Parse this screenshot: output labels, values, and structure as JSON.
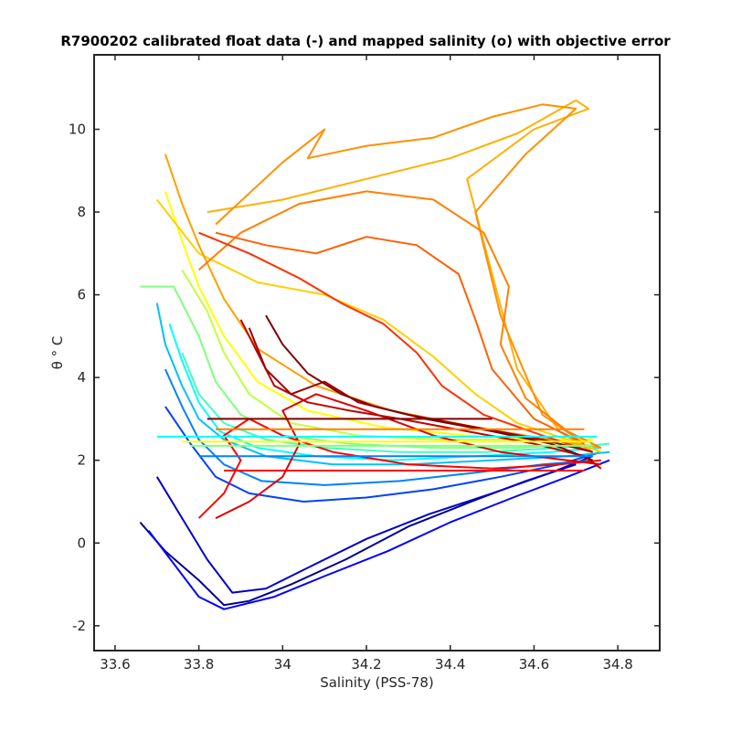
{
  "chart_data": {
    "type": "line",
    "title": "R7900202 calibrated float data (-) and mapped salinity (o) with objective error",
    "xlabel": "Salinity (PSS-78)",
    "ylabel": "θ ° C",
    "xlim": [
      33.55,
      34.9
    ],
    "ylim": [
      -2.6,
      11.8
    ],
    "xticks": [
      33.6,
      33.8,
      34,
      34.2,
      34.4,
      34.6,
      34.8
    ],
    "xtick_labels": [
      "33.6",
      "33.8",
      "34",
      "34.2",
      "34.4",
      "34.6",
      "34.8"
    ],
    "yticks": [
      -2,
      0,
      2,
      4,
      6,
      8,
      10
    ],
    "ytick_labels": [
      "-2",
      "0",
      "2",
      "4",
      "6",
      "8",
      "10"
    ],
    "grid": false,
    "colormap": "jet",
    "colormap_stops": [
      "#00008f",
      "#0000ff",
      "#0080ff",
      "#00ffff",
      "#80ff80",
      "#ffff00",
      "#ff8000",
      "#ff0000",
      "#800000"
    ],
    "series": [
      {
        "color": "#00008f",
        "values": [
          [
            33.66,
            0.5
          ],
          [
            33.72,
            -0.2
          ],
          [
            33.8,
            -0.9
          ],
          [
            33.86,
            -1.5
          ],
          [
            33.92,
            -1.4
          ],
          [
            34.02,
            -1.0
          ],
          [
            34.15,
            -0.4
          ],
          [
            34.3,
            0.4
          ],
          [
            34.45,
            1.0
          ],
          [
            34.58,
            1.5
          ],
          [
            34.7,
            1.9
          ]
        ]
      },
      {
        "color": "#0000c8",
        "values": [
          [
            33.7,
            1.6
          ],
          [
            33.76,
            0.6
          ],
          [
            33.82,
            -0.4
          ],
          [
            33.88,
            -1.2
          ],
          [
            33.96,
            -1.1
          ],
          [
            34.06,
            -0.6
          ],
          [
            34.2,
            0.1
          ],
          [
            34.35,
            0.7
          ],
          [
            34.5,
            1.2
          ],
          [
            34.64,
            1.7
          ],
          [
            34.74,
            2.1
          ]
        ]
      },
      {
        "color": "#0000ff",
        "values": [
          [
            33.68,
            0.3
          ],
          [
            33.74,
            -0.5
          ],
          [
            33.8,
            -1.3
          ],
          [
            33.86,
            -1.6
          ],
          [
            33.98,
            -1.3
          ],
          [
            34.1,
            -0.8
          ],
          [
            34.25,
            -0.2
          ],
          [
            34.4,
            0.5
          ],
          [
            34.55,
            1.1
          ],
          [
            34.68,
            1.6
          ],
          [
            34.78,
            2.0
          ]
        ]
      },
      {
        "color": "#0040ff",
        "values": [
          [
            33.72,
            3.3
          ],
          [
            33.78,
            2.4
          ],
          [
            33.84,
            1.6
          ],
          [
            33.92,
            1.2
          ],
          [
            34.05,
            1.0
          ],
          [
            34.2,
            1.1
          ],
          [
            34.36,
            1.3
          ],
          [
            34.52,
            1.6
          ],
          [
            34.66,
            1.9
          ],
          [
            34.76,
            2.2
          ]
        ]
      },
      {
        "color": "#0080ff",
        "values": [
          [
            33.72,
            4.2
          ],
          [
            33.76,
            3.3
          ],
          [
            33.8,
            2.5
          ],
          [
            33.86,
            1.9
          ],
          [
            33.95,
            1.5
          ],
          [
            34.1,
            1.4
          ],
          [
            34.28,
            1.5
          ],
          [
            34.46,
            1.7
          ],
          [
            34.62,
            1.9
          ],
          [
            34.74,
            2.0
          ]
        ]
      },
      {
        "color": "#00c0ff",
        "values": [
          [
            33.7,
            5.8
          ],
          [
            33.72,
            4.8
          ],
          [
            33.76,
            3.8
          ],
          [
            33.8,
            3.0
          ],
          [
            33.86,
            2.5
          ],
          [
            33.96,
            2.1
          ],
          [
            34.12,
            1.9
          ],
          [
            34.3,
            1.9
          ],
          [
            34.5,
            2.0
          ],
          [
            34.68,
            2.1
          ],
          [
            34.78,
            2.2
          ]
        ]
      },
      {
        "color": "#00ffff",
        "values": [
          [
            33.73,
            5.3
          ],
          [
            33.76,
            4.4
          ],
          [
            33.8,
            3.4
          ],
          [
            33.85,
            2.7
          ],
          [
            33.94,
            2.3
          ],
          [
            34.08,
            2.1
          ],
          [
            34.26,
            2.0
          ],
          [
            34.46,
            2.1
          ],
          [
            34.64,
            2.2
          ],
          [
            34.76,
            2.3
          ]
        ]
      },
      {
        "color": "#40ffc0",
        "values": [
          [
            33.76,
            4.6
          ],
          [
            33.8,
            3.6
          ],
          [
            33.86,
            2.9
          ],
          [
            33.96,
            2.5
          ],
          [
            34.1,
            2.3
          ],
          [
            34.28,
            2.2
          ],
          [
            34.48,
            2.2
          ],
          [
            34.66,
            2.3
          ],
          [
            34.78,
            2.4
          ]
        ]
      },
      {
        "color": "#80ff80",
        "values": [
          [
            33.66,
            6.2
          ],
          [
            33.74,
            6.2
          ],
          [
            33.8,
            5.0
          ],
          [
            33.84,
            3.9
          ],
          [
            33.9,
            3.1
          ],
          [
            34.0,
            2.6
          ],
          [
            34.16,
            2.4
          ],
          [
            34.36,
            2.3
          ],
          [
            34.56,
            2.3
          ],
          [
            34.72,
            2.4
          ]
        ]
      },
      {
        "color": "#c0ff40",
        "values": [
          [
            33.76,
            6.6
          ],
          [
            33.82,
            5.6
          ],
          [
            33.86,
            4.6
          ],
          [
            33.92,
            3.6
          ],
          [
            34.02,
            2.9
          ],
          [
            34.18,
            2.6
          ],
          [
            34.38,
            2.5
          ],
          [
            34.58,
            2.5
          ],
          [
            34.74,
            2.5
          ]
        ]
      },
      {
        "color": "#ffff00",
        "values": [
          [
            33.72,
            8.5
          ],
          [
            33.76,
            7.3
          ],
          [
            33.8,
            6.2
          ],
          [
            33.86,
            5.0
          ],
          [
            33.94,
            3.9
          ],
          [
            34.06,
            3.2
          ],
          [
            34.24,
            2.8
          ],
          [
            34.44,
            2.6
          ],
          [
            34.62,
            2.5
          ],
          [
            34.74,
            2.5
          ]
        ]
      },
      {
        "color": "#ffd000",
        "values": [
          [
            33.7,
            8.3
          ],
          [
            33.8,
            7.0
          ],
          [
            33.94,
            6.3
          ],
          [
            34.1,
            6.0
          ],
          [
            34.24,
            5.4
          ],
          [
            34.36,
            4.5
          ],
          [
            34.46,
            3.6
          ],
          [
            34.56,
            2.9
          ],
          [
            34.68,
            2.5
          ],
          [
            34.76,
            2.2
          ]
        ]
      },
      {
        "color": "#ffa000",
        "values": [
          [
            33.72,
            9.4
          ],
          [
            33.76,
            8.2
          ],
          [
            33.8,
            7.2
          ],
          [
            33.86,
            5.9
          ],
          [
            33.94,
            4.7
          ],
          [
            34.08,
            3.8
          ],
          [
            34.26,
            3.2
          ],
          [
            34.46,
            2.8
          ],
          [
            34.64,
            2.5
          ],
          [
            34.76,
            2.3
          ]
        ]
      },
      {
        "color": "#ffb000",
        "values": [
          [
            33.82,
            8.0
          ],
          [
            34.0,
            8.3
          ],
          [
            34.2,
            8.8
          ],
          [
            34.4,
            9.3
          ],
          [
            34.56,
            9.9
          ],
          [
            34.7,
            10.7
          ],
          [
            34.73,
            10.5
          ],
          [
            34.6,
            10.0
          ],
          [
            34.44,
            8.8
          ],
          [
            34.5,
            6.5
          ],
          [
            34.56,
            4.2
          ],
          [
            34.66,
            2.7
          ],
          [
            34.74,
            2.2
          ]
        ]
      },
      {
        "color": "#ff9000",
        "values": [
          [
            33.84,
            7.7
          ],
          [
            34.0,
            9.2
          ],
          [
            34.1,
            10.0
          ],
          [
            34.06,
            9.3
          ],
          [
            34.2,
            9.6
          ],
          [
            34.36,
            9.8
          ],
          [
            34.5,
            10.3
          ],
          [
            34.62,
            10.6
          ],
          [
            34.7,
            10.5
          ],
          [
            34.58,
            9.4
          ],
          [
            34.46,
            8.0
          ],
          [
            34.52,
            5.5
          ],
          [
            34.62,
            3.1
          ],
          [
            34.72,
            2.4
          ]
        ]
      },
      {
        "color": "#ff8000",
        "values": [
          [
            33.8,
            6.6
          ],
          [
            33.9,
            7.5
          ],
          [
            34.04,
            8.2
          ],
          [
            34.2,
            8.5
          ],
          [
            34.36,
            8.3
          ],
          [
            34.48,
            7.5
          ],
          [
            34.54,
            6.2
          ],
          [
            34.52,
            4.8
          ],
          [
            34.58,
            3.5
          ],
          [
            34.68,
            2.7
          ],
          [
            34.76,
            2.3
          ]
        ]
      },
      {
        "color": "#ff6000",
        "values": [
          [
            33.84,
            7.5
          ],
          [
            33.96,
            7.2
          ],
          [
            34.08,
            7.0
          ],
          [
            34.2,
            7.4
          ],
          [
            34.32,
            7.2
          ],
          [
            34.42,
            6.5
          ],
          [
            34.46,
            5.4
          ],
          [
            34.5,
            4.2
          ],
          [
            34.6,
            3.0
          ],
          [
            34.72,
            2.4
          ]
        ]
      },
      {
        "color": "#ff3000",
        "values": [
          [
            33.8,
            7.5
          ],
          [
            33.92,
            7.0
          ],
          [
            34.04,
            6.4
          ],
          [
            34.14,
            5.8
          ],
          [
            34.24,
            5.3
          ],
          [
            34.32,
            4.6
          ],
          [
            34.38,
            3.8
          ],
          [
            34.48,
            3.1
          ],
          [
            34.62,
            2.6
          ],
          [
            34.74,
            2.2
          ]
        ]
      },
      {
        "color": "#ff0000",
        "values": [
          [
            33.8,
            0.6
          ],
          [
            33.86,
            1.2
          ],
          [
            33.9,
            2.0
          ],
          [
            33.86,
            2.6
          ],
          [
            33.92,
            3.0
          ],
          [
            34.0,
            2.6
          ],
          [
            34.12,
            2.2
          ],
          [
            34.3,
            1.9
          ],
          [
            34.5,
            1.8
          ],
          [
            34.66,
            1.9
          ],
          [
            34.76,
            2.0
          ]
        ]
      },
      {
        "color": "#e00000",
        "values": [
          [
            33.84,
            0.6
          ],
          [
            33.92,
            1.0
          ],
          [
            34.0,
            1.6
          ],
          [
            34.04,
            2.4
          ],
          [
            34.0,
            3.2
          ],
          [
            34.08,
            3.6
          ],
          [
            34.2,
            3.2
          ],
          [
            34.36,
            2.6
          ],
          [
            34.52,
            2.2
          ],
          [
            34.68,
            2.0
          ],
          [
            34.76,
            1.9
          ]
        ]
      },
      {
        "color": "#c00000",
        "values": [
          [
            33.9,
            5.4
          ],
          [
            33.94,
            4.6
          ],
          [
            33.98,
            3.8
          ],
          [
            34.06,
            3.4
          ],
          [
            34.16,
            3.2
          ],
          [
            34.28,
            3.0
          ],
          [
            34.44,
            2.7
          ],
          [
            34.6,
            2.4
          ],
          [
            34.72,
            2.1
          ],
          [
            34.76,
            1.8
          ]
        ]
      },
      {
        "color": "#a00000",
        "values": [
          [
            33.92,
            5.2
          ],
          [
            33.96,
            4.2
          ],
          [
            34.02,
            3.6
          ],
          [
            34.1,
            3.9
          ],
          [
            34.18,
            3.4
          ],
          [
            34.3,
            3.1
          ],
          [
            34.46,
            2.8
          ],
          [
            34.62,
            2.5
          ],
          [
            34.74,
            2.2
          ]
        ]
      },
      {
        "color": "#800000",
        "values": [
          [
            33.96,
            5.5
          ],
          [
            34.0,
            4.8
          ],
          [
            34.06,
            4.1
          ],
          [
            34.14,
            3.6
          ],
          [
            34.22,
            3.3
          ],
          [
            34.34,
            3.0
          ],
          [
            34.5,
            2.7
          ],
          [
            34.64,
            2.4
          ],
          [
            34.74,
            2.0
          ]
        ]
      },
      {
        "color": "#00ffff",
        "values": [
          [
            33.7,
            2.57
          ],
          [
            34.75,
            2.57
          ]
        ]
      },
      {
        "color": "#ffff00",
        "values": [
          [
            33.76,
            2.45
          ],
          [
            34.74,
            2.45
          ]
        ]
      },
      {
        "color": "#80ff80",
        "values": [
          [
            33.78,
            2.35
          ],
          [
            34.74,
            2.35
          ]
        ]
      },
      {
        "color": "#ff8000",
        "values": [
          [
            33.84,
            2.75
          ],
          [
            34.72,
            2.75
          ]
        ]
      },
      {
        "color": "#800000",
        "values": [
          [
            33.82,
            3.0
          ],
          [
            34.5,
            3.0
          ]
        ]
      },
      {
        "color": "#ff0000",
        "values": [
          [
            33.86,
            1.75
          ],
          [
            34.72,
            1.75
          ]
        ]
      },
      {
        "color": "#0080ff",
        "values": [
          [
            33.8,
            2.1
          ],
          [
            34.74,
            2.1
          ]
        ]
      }
    ]
  }
}
